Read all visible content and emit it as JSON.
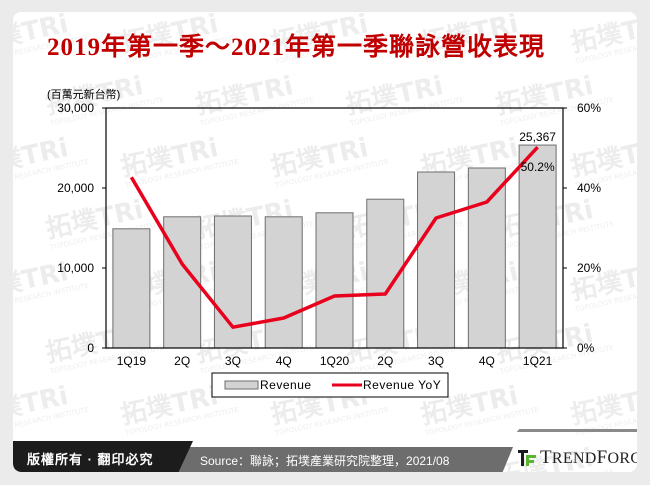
{
  "title": "2019年第一季～2021年第一季聯詠營收表現",
  "unit_label": "(百萬元新台幣)",
  "colors": {
    "title": "#c00000",
    "bar_fill": "#d3d3d3",
    "bar_stroke": "#6e6e6e",
    "line": "#e8001c",
    "footer_dark": "#1c1c1c",
    "footer_gray": "#6d6d6d",
    "logo_green": "#5cb531"
  },
  "chart_data": {
    "type": "bar+line",
    "title": "2019年第一季～2021年第一季聯詠營收表現",
    "categories": [
      "1Q19",
      "2Q",
      "3Q",
      "4Q",
      "1Q20",
      "2Q",
      "3Q",
      "4Q",
      "1Q21"
    ],
    "series": [
      {
        "name": "Revenue",
        "type": "bar",
        "axis": "left",
        "values": [
          14900,
          16400,
          16500,
          16400,
          16900,
          18600,
          22000,
          22500,
          25367
        ]
      },
      {
        "name": "Revenue YoY",
        "type": "line",
        "axis": "right",
        "unit": "%",
        "values": [
          42.7,
          21.0,
          5.2,
          7.5,
          13.0,
          13.5,
          32.5,
          36.5,
          50.2
        ]
      }
    ],
    "ylabel": "(百萬元新台幣)",
    "ylim": [
      0,
      30000
    ],
    "yticks": [
      "0",
      "10,000",
      "20,000",
      "30,000"
    ],
    "y2lim": [
      0,
      60
    ],
    "y2ticks": [
      "0%",
      "20%",
      "40%",
      "60%"
    ],
    "annotations": [
      {
        "text": "25,367",
        "target": "1Q21 Revenue"
      },
      {
        "text": "50.2%",
        "target": "1Q21 Revenue YoY"
      }
    ],
    "legend": [
      "Revenue",
      "Revenue YoY"
    ],
    "legend_position": "bottom",
    "grid": false
  },
  "legend": {
    "revenue": "Revenue",
    "yoy": "Revenue YoY"
  },
  "footer": {
    "copyright": "版權所有 · 翻印必究",
    "source": "Source：聯詠；拓墣產業研究院整理，2021/08",
    "brand": "TrendForce"
  },
  "watermark": {
    "cn": "拓墣",
    "en": "TOPOLOGY RESEARCH INSTITUTE"
  }
}
